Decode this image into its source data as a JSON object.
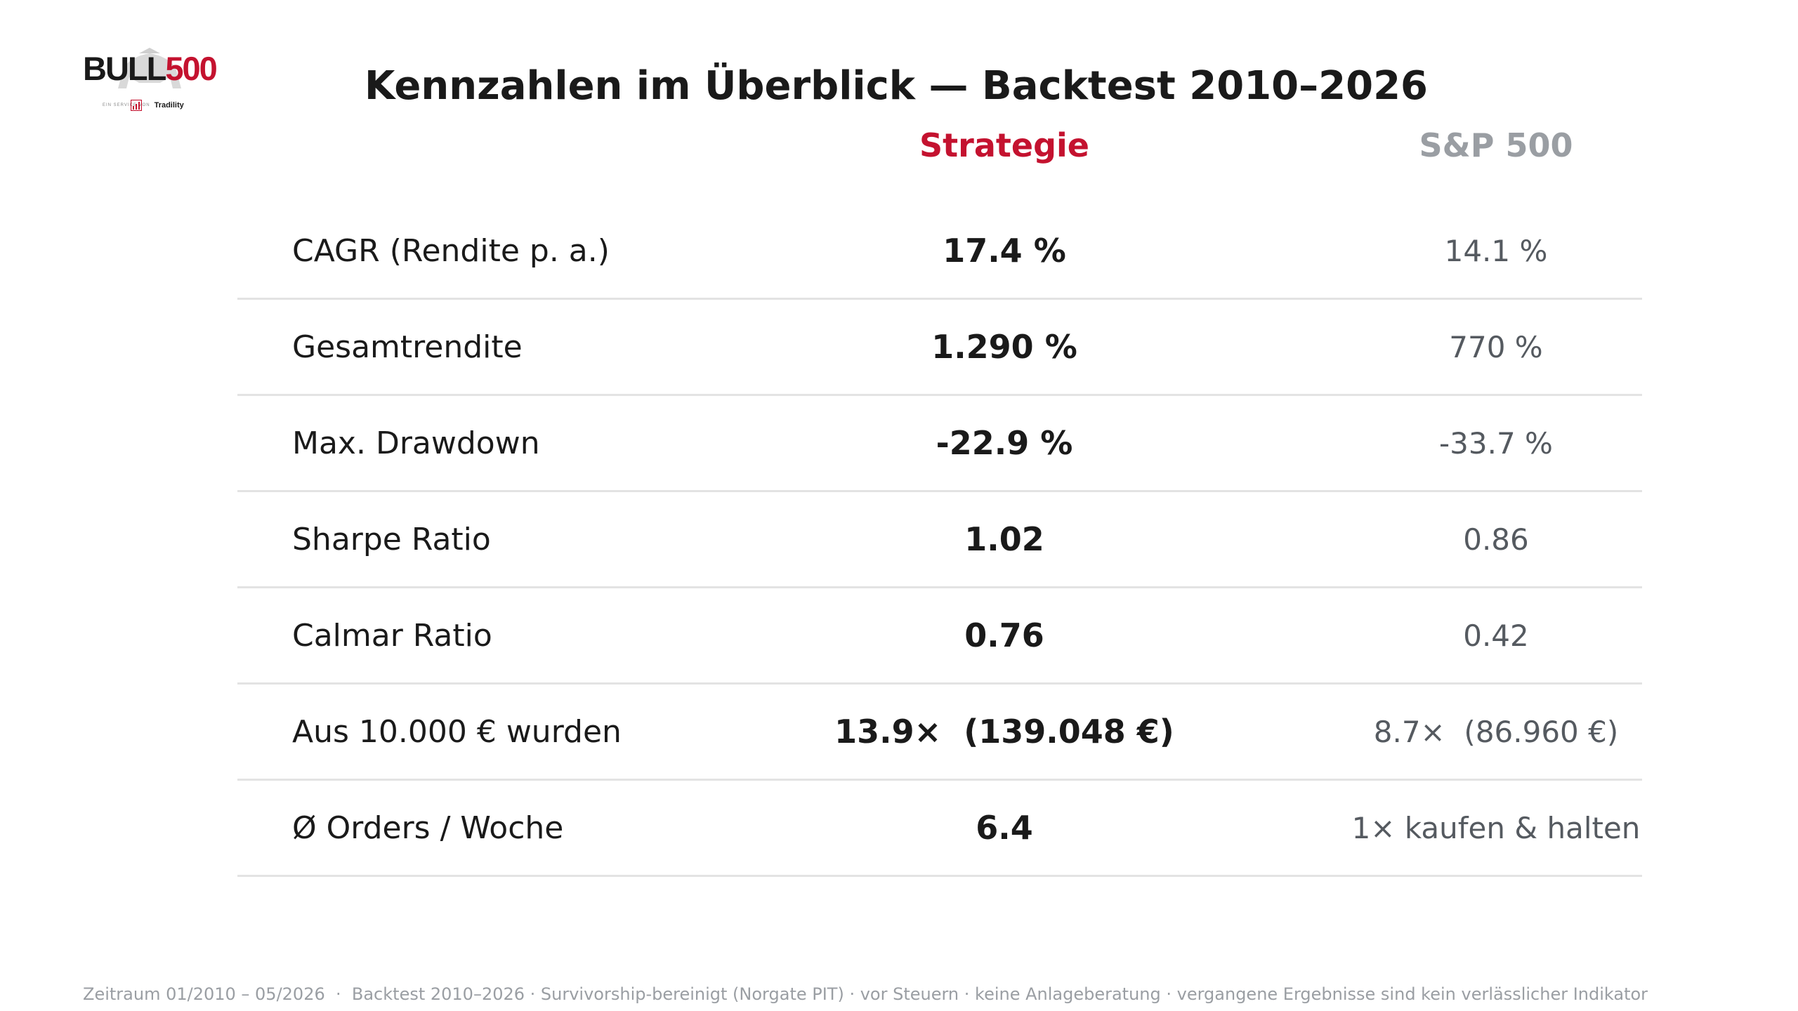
{
  "logo": {
    "word_part1": "BULL",
    "word_part2": "500",
    "tagline": "EIN SERVICE VON",
    "brand": "Tradility",
    "accent": "#c4122f"
  },
  "title": "Kennzahlen im Überblick — Backtest 2010–2026",
  "columns": {
    "strategy": "Strategie",
    "benchmark": "S&P 500"
  },
  "rows": [
    {
      "label": "CAGR (Rendite p. a.)",
      "strategy": "17.4 %",
      "benchmark": "14.1 %"
    },
    {
      "label": "Gesamtrendite",
      "strategy": "1.290 %",
      "benchmark": "770 %"
    },
    {
      "label": "Max. Drawdown",
      "strategy": "-22.9 %",
      "benchmark": "-33.7 %"
    },
    {
      "label": "Sharpe Ratio",
      "strategy": "1.02",
      "benchmark": "0.86"
    },
    {
      "label": "Calmar Ratio",
      "strategy": "0.76",
      "benchmark": "0.42"
    },
    {
      "label": "Aus 10.000 € wurden",
      "strategy": "13.9×  (139.048 €)",
      "benchmark": "8.7×  (86.960 €)"
    },
    {
      "label": "Ø Orders / Woche",
      "strategy": "6.4",
      "benchmark": "1× kaufen & halten"
    }
  ],
  "footer": "Zeitraum 01/2010 – 05/2026  ·  Backtest 2010–2026 · Survivorship-bereinigt (Norgate PIT) · vor Steuern · keine Anlageberatung · vergangene Ergebnisse sind kein verlässlicher Indikator",
  "colors": {
    "strategy": "#c4122f",
    "benchmark": "#9a9ea3",
    "divider": "#e3e3e3"
  }
}
